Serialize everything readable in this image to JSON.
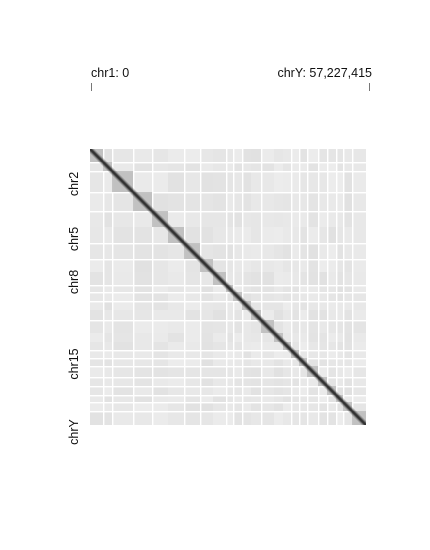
{
  "range": {
    "start_label": "chr1: 0",
    "end_label": "chrY: 57,227,415"
  },
  "axis": {
    "chromosome_labels": [
      "chr2",
      "chr5",
      "chr8",
      "chr15",
      "chrY"
    ]
  },
  "heatmap": {
    "diagonal_color": "#222222",
    "block_color": "#b0b0b0",
    "background_color": "#f2f2f2",
    "gap_color": "#ffffff"
  }
}
